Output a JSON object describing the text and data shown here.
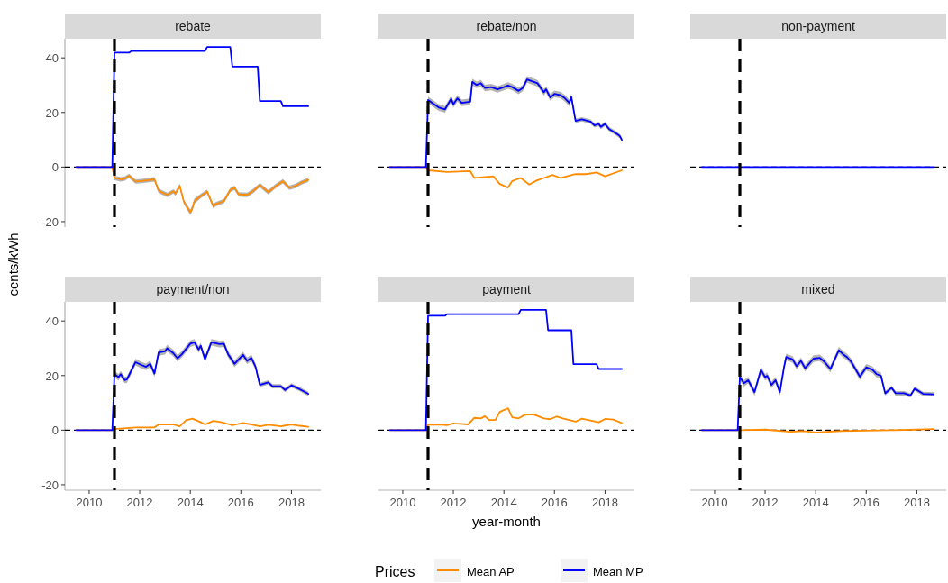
{
  "chart_data": [
    {
      "type": "line",
      "title": "rebate",
      "ylabel": "cents/kWh",
      "xlim": [
        "2009-01-15",
        "2019-03"
      ],
      "ylim": [
        -22,
        47
      ],
      "yticks": [
        -20,
        0,
        20,
        40
      ],
      "tick_labels": "y",
      "ref_lines": [
        {
          "axis": "x",
          "value": "2011-01",
          "line_style": "dashed"
        },
        {
          "axis": "y",
          "value": 0,
          "line_style": "dashed"
        }
      ],
      "series": [
        {
          "color": "#ff8c00",
          "x": [
            "2009-07",
            "2010-12",
            "2011-01",
            "2011-04",
            "2011-06",
            "2011-08",
            "2011-11",
            "2012-02",
            "2012-08",
            "2012-10",
            "2013-02",
            "2013-05",
            "2013-06",
            "2013-08",
            "2013-10",
            "2014-01",
            "2014-02",
            "2014-03",
            "2014-06",
            "2014-09",
            "2014-12",
            "2015-01",
            "2015-05",
            "2015-08",
            "2015-10",
            "2015-12",
            "2016-04",
            "2016-07",
            "2016-10",
            "2017-02",
            "2017-06",
            "2017-09",
            "2017-12",
            "2018-03",
            "2018-06",
            "2018-09"
          ],
          "values": [
            0,
            0,
            -4.0,
            -4.5,
            -4.2,
            -3.2,
            -5.3,
            -5.1,
            -4.5,
            -8.7,
            -10.2,
            -8.9,
            -9.7,
            -6.9,
            -12.8,
            -16.6,
            -15.0,
            -12.5,
            -10.6,
            -9.0,
            -14.4,
            -13.6,
            -12.5,
            -8.4,
            -7.6,
            -10.0,
            -10.2,
            -8.7,
            -6.6,
            -9.2,
            -6.7,
            -5.2,
            -7.6,
            -6.9,
            -5.6,
            -4.7
          ],
          "lower": [
            0,
            0,
            -4.8,
            -5.3,
            -5.0,
            -4.0,
            -6.1,
            -5.9,
            -5.3,
            -9.5,
            -11.0,
            -9.7,
            -10.5,
            -7.7,
            -13.6,
            -17.6,
            -16.0,
            -13.5,
            -11.4,
            -9.8,
            -15.2,
            -14.4,
            -13.3,
            -9.2,
            -8.4,
            -10.8,
            -11.0,
            -9.5,
            -7.4,
            -10.0,
            -7.5,
            -6.0,
            -8.4,
            -7.7,
            -6.4,
            -5.5
          ],
          "upper": [
            0,
            0,
            -3.2,
            -3.7,
            -3.4,
            -2.4,
            -4.5,
            -4.3,
            -3.7,
            -7.9,
            -9.4,
            -8.1,
            -8.9,
            -6.1,
            -12.0,
            -15.6,
            -14.0,
            -11.5,
            -9.8,
            -8.2,
            -13.6,
            -12.8,
            -11.7,
            -7.6,
            -6.8,
            -9.2,
            -9.4,
            -7.9,
            -5.8,
            -8.4,
            -5.9,
            -4.4,
            -6.8,
            -6.1,
            -4.8,
            -3.9
          ]
        },
        {
          "color": "#0000ff",
          "x": [
            "2009-07",
            "2010-12",
            "2011-01",
            "2011-08",
            "2011-09",
            "2014-08",
            "2014-09",
            "2015-08",
            "2015-09",
            "2016-09",
            "2016-10",
            "2017-08",
            "2017-09",
            "2018-09"
          ],
          "values": [
            0,
            0,
            41.9,
            41.9,
            42.5,
            42.5,
            44,
            44,
            36.8,
            36.8,
            24.2,
            24.2,
            22.3,
            22.3
          ]
        }
      ]
    },
    {
      "type": "line",
      "title": "rebate/non",
      "xlim": [
        "2009-01-15",
        "2019-03"
      ],
      "ylim": [
        -22,
        47
      ],
      "tick_labels": false,
      "ref_lines": [
        {
          "axis": "x",
          "value": "2011-01",
          "line_style": "dashed"
        },
        {
          "axis": "y",
          "value": 0,
          "line_style": "dashed"
        }
      ],
      "series": [
        {
          "color": "#ff8c00",
          "x": [
            "2009-07",
            "2010-12",
            "2011-01",
            "2011-10",
            "2012-09",
            "2012-11",
            "2013-08",
            "2013-11",
            "2014-03",
            "2014-05",
            "2014-09",
            "2015-01",
            "2015-05",
            "2015-08",
            "2015-12",
            "2016-04",
            "2016-11",
            "2017-04",
            "2017-09",
            "2018-01",
            "2018-09"
          ],
          "values": [
            0,
            0,
            -1.2,
            -1.8,
            -1.5,
            -4.0,
            -3.4,
            -6.2,
            -7.5,
            -5.1,
            -4.0,
            -6.4,
            -4.8,
            -4.0,
            -2.9,
            -4.0,
            -2.6,
            -2.6,
            -2.0,
            -3.4,
            -1.2
          ]
        },
        {
          "color": "#0000ff",
          "x": [
            "2009-07",
            "2010-12",
            "2011-01",
            "2011-03",
            "2011-06",
            "2011-09",
            "2011-10",
            "2011-12",
            "2012-01",
            "2012-03",
            "2012-05",
            "2012-09",
            "2012-10",
            "2012-12",
            "2013-02",
            "2013-04",
            "2013-07",
            "2013-10",
            "2014-01",
            "2014-03",
            "2014-05",
            "2014-08",
            "2014-10",
            "2014-12",
            "2015-02",
            "2015-05",
            "2015-08",
            "2015-09",
            "2015-11",
            "2016-01",
            "2016-04",
            "2016-06",
            "2016-08",
            "2016-09",
            "2016-11",
            "2017-02",
            "2017-06",
            "2017-08",
            "2017-10",
            "2017-11",
            "2018-01",
            "2018-03",
            "2018-06",
            "2018-08",
            "2018-09"
          ],
          "values": [
            0,
            0,
            24.6,
            23.5,
            21.9,
            21.1,
            22.4,
            25.0,
            23.0,
            25.2,
            23.5,
            23.9,
            31.2,
            30.1,
            30.7,
            29.0,
            29.3,
            28.5,
            29.3,
            29.9,
            29.3,
            27.9,
            29.0,
            32.1,
            31.5,
            30.7,
            27.4,
            28.5,
            25.5,
            26.8,
            26.3,
            25.2,
            23.5,
            25.7,
            16.9,
            17.5,
            16.7,
            15.3,
            15.8,
            14.7,
            15.8,
            13.9,
            12.5,
            11.4,
            10.0
          ],
          "lower": [
            0,
            0,
            23.4,
            22.3,
            20.7,
            19.9,
            21.2,
            23.8,
            21.8,
            24.0,
            22.3,
            22.7,
            30.0,
            28.9,
            29.5,
            27.8,
            28.1,
            27.3,
            28.1,
            28.7,
            28.1,
            26.7,
            27.8,
            30.9,
            30.3,
            29.5,
            26.2,
            27.3,
            24.3,
            25.6,
            25.1,
            24.0,
            22.3,
            24.5,
            16.1,
            16.7,
            15.9,
            14.5,
            15.0,
            13.9,
            15.0,
            13.1,
            11.7,
            10.6,
            9.2
          ],
          "upper": [
            0,
            0,
            25.8,
            24.7,
            23.1,
            22.3,
            23.6,
            26.2,
            24.2,
            26.4,
            24.7,
            25.1,
            32.4,
            31.3,
            31.9,
            30.2,
            30.5,
            29.7,
            30.5,
            31.1,
            30.5,
            29.1,
            30.2,
            33.3,
            32.7,
            31.9,
            28.6,
            29.7,
            26.7,
            28.0,
            27.5,
            26.4,
            24.7,
            26.9,
            17.7,
            18.3,
            17.5,
            16.1,
            16.6,
            15.5,
            16.6,
            14.7,
            13.3,
            12.2,
            10.8
          ]
        }
      ]
    },
    {
      "type": "line",
      "title": "non-payment",
      "xlim": [
        "2009-01-15",
        "2019-03"
      ],
      "ylim": [
        -22,
        47
      ],
      "tick_labels": false,
      "ref_lines": [
        {
          "axis": "x",
          "value": "2011-01",
          "line_style": "dashed"
        },
        {
          "axis": "y",
          "value": 0,
          "line_style": "dashed"
        }
      ],
      "series": [
        {
          "color": "#0000ff",
          "x": [
            "2009-07",
            "2018-09"
          ],
          "values": [
            0,
            0
          ]
        }
      ]
    },
    {
      "type": "line",
      "title": "payment/non",
      "xlim": [
        "2009-01-15",
        "2019-03"
      ],
      "ylim": [
        -22,
        47
      ],
      "yticks": [
        -20,
        0,
        20,
        40
      ],
      "xticks": [
        "2010",
        "2012",
        "2014",
        "2016",
        "2018"
      ],
      "ref_lines": [
        {
          "axis": "x",
          "value": "2011-01",
          "line_style": "dashed"
        },
        {
          "axis": "y",
          "value": 0,
          "line_style": "dashed"
        }
      ],
      "series": [
        {
          "color": "#ff8c00",
          "x": [
            "2009-07",
            "2010-12",
            "2011-01",
            "2011-11",
            "2012-08",
            "2012-10",
            "2013-05",
            "2013-08",
            "2013-11",
            "2014-02",
            "2014-06",
            "2014-08",
            "2014-12",
            "2015-04",
            "2015-09",
            "2016-02",
            "2016-06",
            "2016-10",
            "2017-02",
            "2017-08",
            "2018-01",
            "2018-05",
            "2018-09"
          ],
          "values": [
            0,
            0,
            0.4,
            1.0,
            1.0,
            2.1,
            2.1,
            1.4,
            3.6,
            4.2,
            2.9,
            2.1,
            3.4,
            2.9,
            1.8,
            2.6,
            2.1,
            1.4,
            2.0,
            1.4,
            2.1,
            1.6,
            1.2
          ]
        },
        {
          "color": "#0000ff",
          "x": [
            "2009-07",
            "2010-12",
            "2011-01",
            "2011-03",
            "2011-04",
            "2011-06",
            "2011-07",
            "2011-11",
            "2012-02",
            "2012-04",
            "2012-06",
            "2012-08",
            "2012-10",
            "2013-01",
            "2013-02",
            "2013-05",
            "2013-07",
            "2013-09",
            "2014-01",
            "2014-03",
            "2014-05",
            "2014-06",
            "2014-08",
            "2014-11",
            "2015-03",
            "2015-05",
            "2015-07",
            "2015-10",
            "2016-02",
            "2016-04",
            "2016-06",
            "2016-08",
            "2016-10",
            "2017-02",
            "2017-04",
            "2017-08",
            "2017-10",
            "2018-01",
            "2018-05",
            "2018-09"
          ],
          "values": [
            0,
            0,
            20.5,
            19.4,
            20.5,
            18.3,
            18.6,
            24.9,
            23.8,
            23.2,
            24.3,
            20.7,
            28.5,
            28.9,
            30.0,
            28.2,
            26.3,
            27.8,
            31.7,
            32.2,
            29.6,
            30.9,
            26.0,
            32.2,
            31.5,
            31.7,
            27.8,
            24.3,
            27.6,
            25.4,
            26.5,
            23.2,
            16.6,
            17.5,
            16.1,
            16.1,
            14.7,
            16.4,
            15.0,
            13.3
          ],
          "lower": [
            0,
            0,
            19.3,
            18.2,
            19.3,
            17.1,
            17.4,
            23.7,
            22.6,
            22.0,
            23.1,
            19.5,
            27.3,
            27.7,
            28.8,
            27.0,
            25.1,
            26.6,
            30.5,
            31.0,
            28.4,
            29.7,
            24.8,
            31.0,
            30.3,
            30.5,
            26.6,
            23.1,
            26.4,
            24.2,
            25.3,
            22.0,
            15.8,
            16.7,
            15.3,
            15.3,
            13.9,
            15.6,
            14.2,
            12.5
          ],
          "upper": [
            0,
            0,
            21.7,
            20.6,
            21.7,
            19.5,
            19.8,
            26.1,
            25.0,
            24.4,
            25.5,
            21.9,
            29.7,
            30.1,
            31.2,
            29.4,
            27.5,
            29.0,
            32.9,
            33.4,
            30.8,
            32.1,
            27.2,
            33.4,
            32.7,
            32.9,
            29.0,
            25.5,
            28.8,
            26.6,
            27.7,
            24.4,
            17.4,
            18.3,
            16.9,
            16.9,
            15.5,
            17.2,
            15.8,
            14.1
          ]
        }
      ]
    },
    {
      "type": "line",
      "title": "payment",
      "xlabel": "year-month",
      "legend": "bottom",
      "legend_title": "Prices",
      "xlim": [
        "2009-01-15",
        "2019-03"
      ],
      "ylim": [
        -22,
        47
      ],
      "xticks": [
        "2010",
        "2012",
        "2014",
        "2016",
        "2018"
      ],
      "tick_labels": "x",
      "ref_lines": [
        {
          "axis": "x",
          "value": "2011-01",
          "line_style": "dashed"
        },
        {
          "axis": "y",
          "value": 0,
          "line_style": "dashed"
        }
      ],
      "series": [
        {
          "name": "Mean AP",
          "color": "#ff8c00",
          "x": [
            "2009-07",
            "2010-12",
            "2011-01",
            "2011-06",
            "2011-10",
            "2012-01",
            "2012-08",
            "2012-11",
            "2013-02",
            "2013-04",
            "2013-06",
            "2013-09",
            "2013-11",
            "2014-03",
            "2014-05",
            "2014-08",
            "2014-11",
            "2015-03",
            "2015-08",
            "2015-11",
            "2016-02",
            "2016-05",
            "2016-11",
            "2017-02",
            "2017-10",
            "2018-01",
            "2018-05",
            "2018-09"
          ],
          "values": [
            0,
            0,
            2.0,
            2.1,
            1.8,
            2.5,
            2.1,
            4.5,
            4.3,
            5.1,
            3.7,
            3.7,
            6.7,
            8.0,
            4.7,
            4.3,
            5.6,
            5.8,
            4.3,
            4.0,
            5.0,
            4.3,
            3.1,
            4.2,
            2.9,
            4.1,
            3.9,
            2.6
          ]
        },
        {
          "name": "Mean MP",
          "color": "#0000ff",
          "x": [
            "2009-07",
            "2010-12",
            "2011-01",
            "2011-09",
            "2011-10",
            "2014-08",
            "2014-09",
            "2015-09",
            "2015-10",
            "2016-09",
            "2016-10",
            "2017-09",
            "2017-10",
            "2018-09"
          ],
          "values": [
            0,
            0,
            41.9,
            41.9,
            42.5,
            42.5,
            44.1,
            44.1,
            36.6,
            36.6,
            24.2,
            24.2,
            22.4,
            22.4
          ]
        }
      ]
    },
    {
      "type": "line",
      "title": "mixed",
      "xlim": [
        "2009-01-15",
        "2019-03"
      ],
      "ylim": [
        -22,
        47
      ],
      "xticks": [
        "2010",
        "2012",
        "2014",
        "2016",
        "2018"
      ],
      "tick_labels": "x",
      "ref_lines": [
        {
          "axis": "x",
          "value": "2011-01",
          "line_style": "dashed"
        },
        {
          "axis": "y",
          "value": 0,
          "line_style": "dashed"
        }
      ],
      "series": [
        {
          "color": "#ff8c00",
          "x": [
            "2009-07",
            "2010-12",
            "2011-01",
            "2012-01",
            "2013-01",
            "2013-07",
            "2014-01",
            "2015-01",
            "2016-01",
            "2017-01",
            "2018-01",
            "2018-09"
          ],
          "values": [
            0,
            0,
            0,
            0.2,
            -0.6,
            -0.3,
            -0.8,
            -0.3,
            -0.2,
            0,
            0.2,
            0.4
          ]
        },
        {
          "color": "#0000ff",
          "x": [
            "2009-07",
            "2010-12",
            "2011-01",
            "2011-03",
            "2011-05",
            "2011-08",
            "2011-11",
            "2012-01",
            "2012-02",
            "2012-04",
            "2012-06",
            "2012-08",
            "2012-10",
            "2012-11",
            "2013-02",
            "2013-04",
            "2013-06",
            "2013-08",
            "2013-12",
            "2014-03",
            "2014-05",
            "2014-08",
            "2014-12",
            "2015-02",
            "2015-04",
            "2015-06",
            "2015-10",
            "2016-01",
            "2016-04",
            "2016-06",
            "2016-08",
            "2016-10",
            "2017-01",
            "2017-03",
            "2017-07",
            "2017-10",
            "2017-12",
            "2018-04",
            "2018-09"
          ],
          "values": [
            0,
            0,
            19.4,
            17.2,
            18.3,
            13.9,
            22.1,
            19.4,
            19.9,
            16.6,
            18.3,
            13.9,
            23.2,
            26.8,
            25.9,
            23.4,
            25.4,
            22.7,
            26.2,
            26.5,
            25.2,
            22.4,
            29.3,
            27.8,
            26.7,
            24.9,
            19.6,
            23.0,
            22.1,
            20.5,
            19.9,
            13.5,
            15.5,
            13.5,
            13.5,
            12.7,
            15.2,
            13.3,
            13.1
          ],
          "lower": [
            0,
            0,
            18.2,
            16.0,
            17.1,
            12.7,
            20.9,
            18.2,
            18.7,
            15.4,
            17.1,
            12.7,
            22.0,
            25.6,
            24.7,
            22.2,
            24.2,
            21.5,
            25.0,
            25.3,
            24.0,
            21.2,
            28.1,
            26.6,
            25.5,
            23.7,
            18.4,
            21.8,
            20.9,
            19.3,
            18.7,
            12.7,
            14.7,
            12.7,
            12.7,
            11.9,
            14.4,
            12.5,
            12.3
          ],
          "upper": [
            0,
            0,
            20.6,
            18.4,
            19.5,
            15.1,
            23.3,
            20.6,
            21.1,
            17.8,
            19.5,
            15.1,
            24.4,
            28.0,
            27.1,
            24.6,
            26.6,
            23.9,
            27.4,
            27.7,
            26.4,
            23.6,
            30.5,
            29.0,
            27.9,
            26.1,
            20.8,
            24.2,
            23.3,
            21.7,
            21.1,
            14.3,
            16.3,
            14.3,
            14.3,
            13.5,
            16.0,
            14.1,
            13.9
          ]
        }
      ]
    }
  ]
}
